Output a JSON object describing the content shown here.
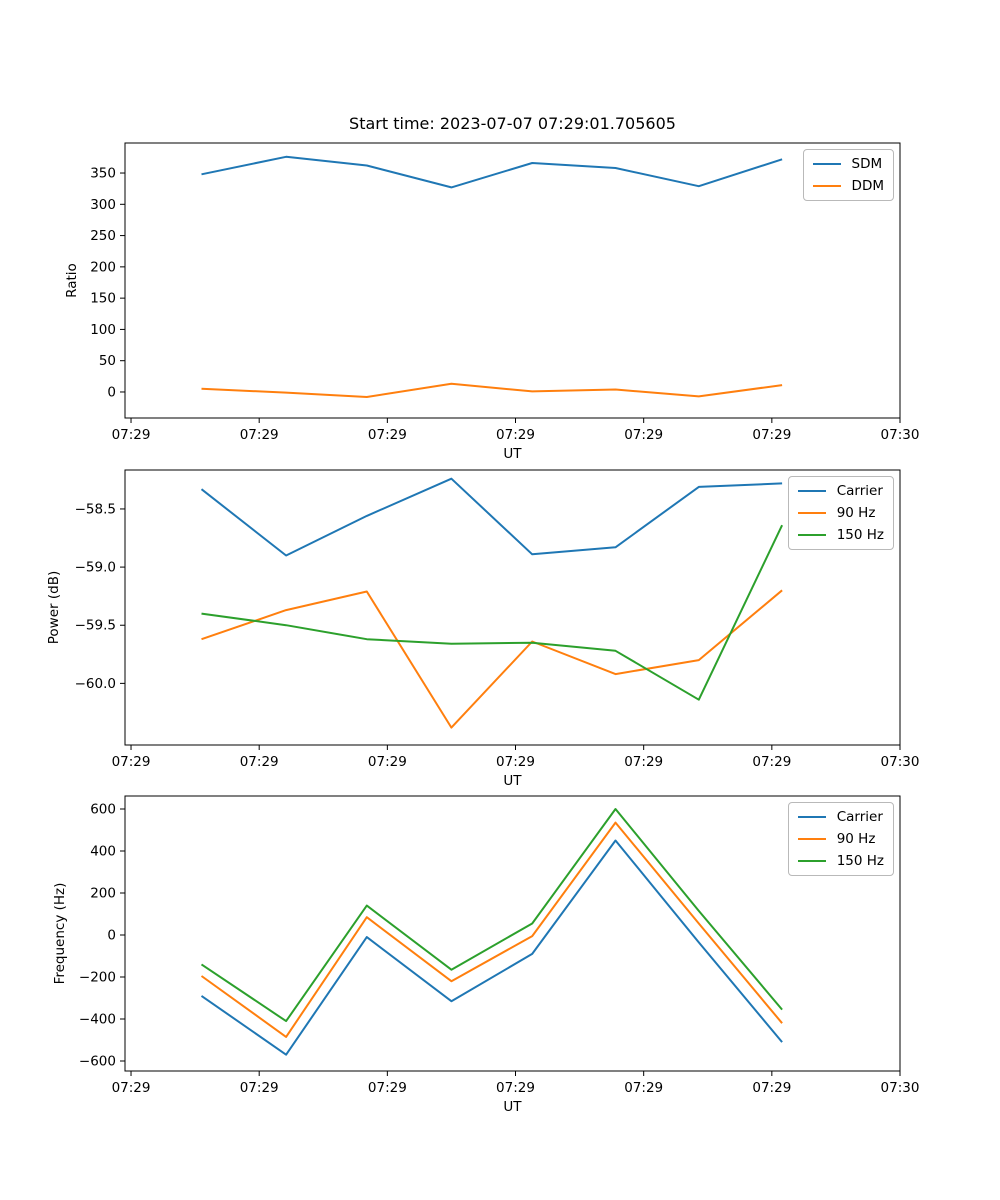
{
  "chart_data": {
    "type": "line",
    "figure_title": "Start time: 2023-07-07 07:29:01.705605",
    "grid": false,
    "x_axis": {
      "label": "UT",
      "xlim_seconds": [
        -0.47,
        60
      ],
      "tick_seconds": [
        0,
        10,
        20,
        30,
        40,
        50,
        60
      ],
      "tick_labels": [
        "07:29",
        "07:29",
        "07:29",
        "07:29",
        "07:29",
        "07:29",
        "07:30"
      ],
      "x_seconds": [
        5.5,
        12.1,
        18.4,
        25.0,
        31.3,
        37.8,
        44.3,
        50.8
      ]
    },
    "subplots": [
      {
        "ylabel": "Ratio",
        "ylim": [
          -41.6,
          398
        ],
        "ytick_values": [
          0,
          50,
          100,
          150,
          200,
          250,
          300,
          350
        ],
        "ytick_labels": [
          "0",
          "50",
          "100",
          "150",
          "200",
          "250",
          "300",
          "350"
        ],
        "legend_location": "upper right",
        "series": [
          {
            "name": "SDM",
            "color": "#1f77b4",
            "values": [
              348,
              376,
              362,
              327,
              366,
              358,
              329,
              372
            ]
          },
          {
            "name": "DDM",
            "color": "#ff7f0e",
            "values": [
              5,
              -1,
              -8,
              13,
              1,
              4,
              -7,
              11
            ]
          }
        ]
      },
      {
        "ylabel": "Power (dB)",
        "ylim": [
          -60.53,
          -58.165
        ],
        "ytick_values": [
          -58.5,
          -59.0,
          -59.5,
          -60.0
        ],
        "ytick_labels": [
          "−58.5",
          "−59.0",
          "−59.5",
          "−60.0"
        ],
        "legend_location": "upper right",
        "series": [
          {
            "name": "Carrier",
            "color": "#1f77b4",
            "values": [
              -58.33,
              -58.9,
              -58.56,
              -58.24,
              -58.89,
              -58.83,
              -58.31,
              -58.28
            ]
          },
          {
            "name": "90 Hz",
            "color": "#ff7f0e",
            "values": [
              -59.62,
              -59.37,
              -59.21,
              -60.38,
              -59.64,
              -59.92,
              -59.8,
              -59.2
            ]
          },
          {
            "name": "150 Hz",
            "color": "#2ca02c",
            "values": [
              -59.4,
              -59.5,
              -59.62,
              -59.66,
              -59.65,
              -59.72,
              -60.14,
              -58.64
            ]
          }
        ]
      },
      {
        "ylabel": "Frequency (Hz)",
        "ylim": [
          -647.6,
          661.9
        ],
        "ytick_values": [
          600,
          400,
          200,
          0,
          -200,
          -400,
          -600
        ],
        "ytick_labels": [
          "600",
          "400",
          "200",
          "0",
          "−200",
          "−400",
          "−600"
        ],
        "legend_location": "upper right",
        "series": [
          {
            "name": "Carrier",
            "color": "#1f77b4",
            "values": [
              -290,
              -570,
              -10,
              -315,
              -90,
              450,
              -35,
              -510
            ]
          },
          {
            "name": "90 Hz",
            "color": "#ff7f0e",
            "values": [
              -195,
              -485,
              85,
              -220,
              -5,
              535,
              55,
              -420
            ]
          },
          {
            "name": "150 Hz",
            "color": "#2ca02c",
            "values": [
              -140,
              -410,
              140,
              -165,
              55,
              600,
              115,
              -355
            ]
          }
        ]
      }
    ]
  }
}
